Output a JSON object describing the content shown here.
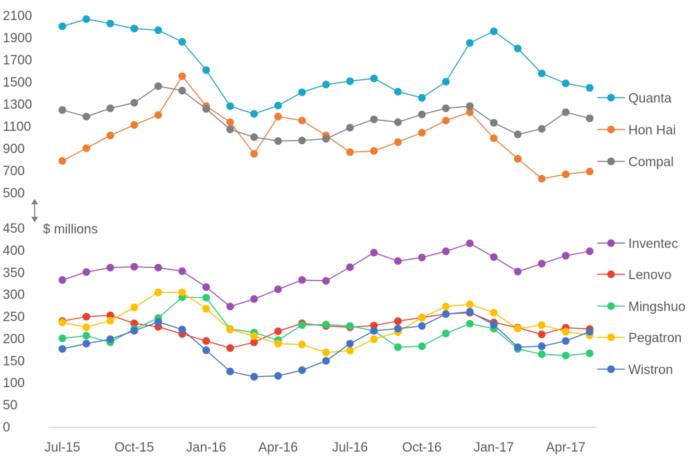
{
  "chart_data": [
    {
      "type": "line",
      "panel": "top",
      "x": [
        "Jul-15",
        "Aug-15",
        "Sep-15",
        "Oct-15",
        "Nov-15",
        "Dec-15",
        "Jan-16",
        "Feb-16",
        "Mar-16",
        "Apr-16",
        "May-16",
        "Jun-16",
        "Jul-16",
        "Aug-16",
        "Sep-16",
        "Oct-16",
        "Nov-16",
        "Dec-16",
        "Jan-17",
        "Feb-17",
        "Mar-17",
        "Apr-17",
        "May-17"
      ],
      "xticks": [
        "Jul-15",
        "Oct-15",
        "Jan-16",
        "Apr-16",
        "Jul-16",
        "Oct-16",
        "Jan-17",
        "Apr-17"
      ],
      "ylim": [
        500,
        2100
      ],
      "yticks": [
        "500",
        "700",
        "900",
        "1100",
        "1300",
        "1500",
        "1700",
        "1900",
        "2100"
      ],
      "series": [
        {
          "name": "Quanta",
          "color": "#1aa6c8",
          "values": [
            2000,
            2065,
            2025,
            1980,
            1965,
            1860,
            1605,
            1280,
            1210,
            1285,
            1405,
            1475,
            1505,
            1530,
            1410,
            1355,
            1500,
            1850,
            1955,
            1800,
            1575,
            1485,
            1445
          ]
        },
        {
          "name": "Hon Hai",
          "color": "#ed7d31",
          "values": [
            785,
            900,
            1015,
            1110,
            1200,
            1550,
            1280,
            1135,
            850,
            1185,
            1150,
            1015,
            865,
            875,
            955,
            1040,
            1150,
            1225,
            990,
            805,
            625,
            665,
            690
          ]
        },
        {
          "name": "Compal",
          "color": "#7f7f7f",
          "values": [
            1245,
            1185,
            1260,
            1310,
            1460,
            1420,
            1255,
            1070,
            1000,
            965,
            970,
            985,
            1085,
            1160,
            1135,
            1205,
            1260,
            1280,
            1130,
            1025,
            1075,
            1225,
            1170
          ]
        }
      ]
    },
    {
      "type": "line",
      "panel": "bottom",
      "ylabel": "$ millions",
      "x": [
        "Jul-15",
        "Aug-15",
        "Sep-15",
        "Oct-15",
        "Nov-15",
        "Dec-15",
        "Jan-16",
        "Feb-16",
        "Mar-16",
        "Apr-16",
        "May-16",
        "Jun-16",
        "Jul-16",
        "Aug-16",
        "Sep-16",
        "Oct-16",
        "Nov-16",
        "Dec-16",
        "Jan-17",
        "Feb-17",
        "Mar-17",
        "Apr-17",
        "May-17"
      ],
      "xticks": [
        "Jul-15",
        "Oct-15",
        "Jan-16",
        "Apr-16",
        "Jul-16",
        "Oct-16",
        "Jan-17",
        "Apr-17"
      ],
      "ylim": [
        0,
        450
      ],
      "yticks": [
        "0",
        "50",
        "100",
        "150",
        "200",
        "250",
        "300",
        "350",
        "400",
        "450"
      ],
      "series": [
        {
          "name": "Inventec",
          "color": "#9b4fb3",
          "values": [
            332,
            350,
            360,
            362,
            360,
            352,
            316,
            272,
            289,
            311,
            332,
            330,
            361,
            394,
            375,
            383,
            397,
            415,
            384,
            351,
            369,
            387,
            397
          ]
        },
        {
          "name": "Lenovo",
          "color": "#e8412e",
          "values": [
            239,
            249,
            252,
            234,
            226,
            210,
            194,
            178,
            191,
            216,
            234,
            228,
            225,
            229,
            239,
            247,
            255,
            258,
            236,
            224,
            209,
            224,
            221
          ]
        },
        {
          "name": "Mingshuo",
          "color": "#2ecc71",
          "values": [
            200,
            206,
            191,
            221,
            246,
            293,
            292,
            221,
            213,
            196,
            230,
            231,
            228,
            217,
            180,
            182,
            211,
            233,
            222,
            176,
            164,
            161,
            166
          ]
        },
        {
          "name": "Pegatron",
          "color": "#ffc000",
          "values": [
            236,
            225,
            240,
            270,
            304,
            304,
            267,
            220,
            205,
            188,
            186,
            168,
            172,
            198,
            214,
            247,
            272,
            277,
            258,
            222,
            230,
            215,
            207
          ]
        },
        {
          "name": "Wistron",
          "color": "#4472c4",
          "values": [
            176,
            188,
            198,
            217,
            237,
            220,
            173,
            125,
            113,
            115,
            128,
            149,
            188,
            217,
            222,
            228,
            255,
            260,
            231,
            180,
            182,
            194,
            215
          ]
        }
      ]
    }
  ]
}
